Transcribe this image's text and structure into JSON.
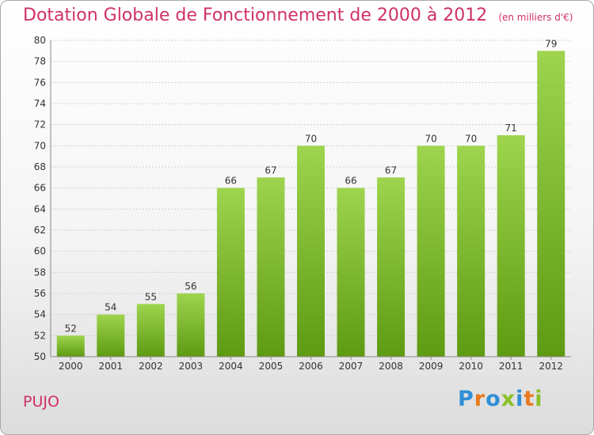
{
  "header": {
    "title": "Dotation Globale de Fonctionnement de 2000 à 2012",
    "subtitle": "(en milliers d'€)"
  },
  "footer": {
    "place": "PUJO",
    "logo_text": "Proxiti",
    "logo_colors": [
      "#2e8fd6",
      "#e8791e",
      "#2e8fd6",
      "#8cbf26",
      "#2e8fd6",
      "#e8791e",
      "#8cbf26"
    ]
  },
  "chart_data": {
    "type": "bar",
    "title": "Dotation Globale de Fonctionnement de 2000 à 2012",
    "subtitle": "(en milliers d'€)",
    "categories": [
      "2000",
      "2001",
      "2002",
      "2003",
      "2004",
      "2005",
      "2006",
      "2007",
      "2008",
      "2009",
      "2010",
      "2011",
      "2012"
    ],
    "values": [
      52,
      54,
      55,
      56,
      66,
      67,
      70,
      66,
      67,
      70,
      70,
      71,
      79
    ],
    "ylim": [
      50,
      80
    ],
    "yticks": [
      50,
      52,
      54,
      56,
      58,
      60,
      62,
      64,
      66,
      68,
      70,
      72,
      74,
      76,
      78,
      80
    ],
    "grid": true,
    "bar_color": "#8cc43a",
    "xlabel": "",
    "ylabel": ""
  }
}
